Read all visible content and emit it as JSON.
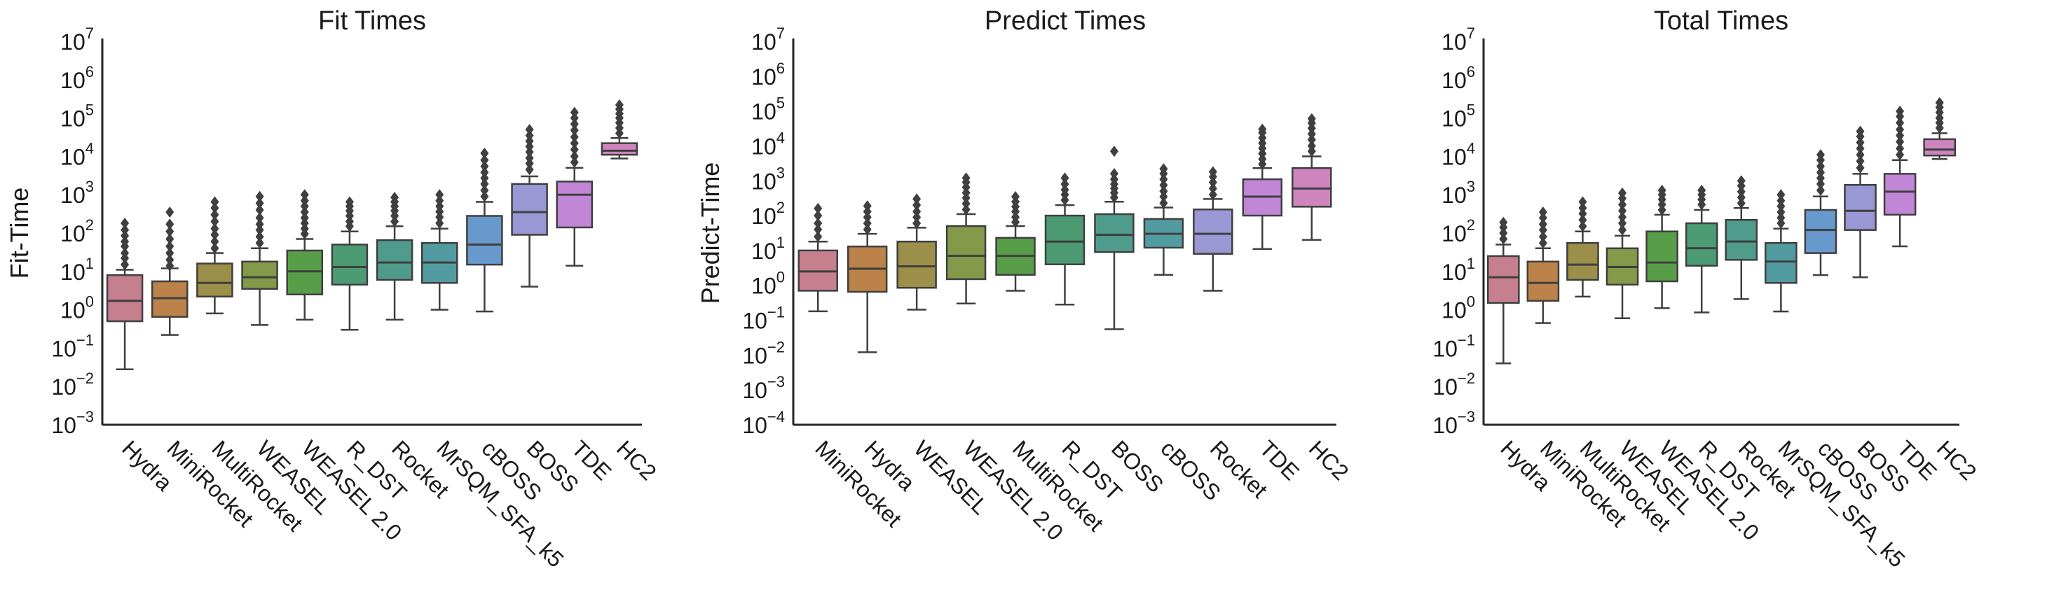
{
  "chart_data": [
    {
      "type": "box",
      "title": "Fit Times",
      "ylabel": "Fit-Time",
      "yscale": "log",
      "ylim_exp": [
        -3,
        7
      ],
      "tick_labels": [
        "10",
        "10",
        "10",
        "10",
        "10",
        "10",
        "10",
        "10",
        "10",
        "10",
        "10"
      ],
      "tick_exponents": [
        "−3",
        "−2",
        "−1",
        "0",
        "1",
        "2",
        "3",
        "4",
        "5",
        "6",
        "7"
      ],
      "categories": [
        "Hydra",
        "MiniRocket",
        "MultiRocket",
        "WEASEL",
        "WEASEL 2.0",
        "R_DST",
        "Rocket",
        "MrSQM_SFA_k5",
        "cBOSS",
        "BOSS",
        "TDE",
        "HC2"
      ],
      "colors": [
        "#d4899a",
        "#c98c4e",
        "#a89a4e",
        "#8ea54f",
        "#5faa4f",
        "#52a77b",
        "#55a898",
        "#58a7ad",
        "#6fa5db",
        "#a5a2e4",
        "#cf90e6",
        "#dd8fcc"
      ],
      "boxes": [
        {
          "whislo": 0.028,
          "q1": 0.5,
          "med": 1.7,
          "q3": 8,
          "whishi": 11,
          "fliers": [
            15,
            22,
            30,
            45,
            60,
            85,
            120,
            180
          ]
        },
        {
          "whislo": 0.22,
          "q1": 0.65,
          "med": 2.0,
          "q3": 5.5,
          "whishi": 12,
          "fliers": [
            14,
            20,
            30,
            45,
            70,
            110,
            170,
            350
          ]
        },
        {
          "whislo": 0.8,
          "q1": 2.2,
          "med": 5.0,
          "q3": 16,
          "whishi": 30,
          "fliers": [
            40,
            60,
            90,
            130,
            200,
            300,
            450,
            650
          ]
        },
        {
          "whislo": 0.4,
          "q1": 3.5,
          "med": 7.0,
          "q3": 18,
          "whishi": 40,
          "fliers": [
            55,
            80,
            120,
            170,
            250,
            400,
            600,
            900
          ]
        },
        {
          "whislo": 0.55,
          "q1": 2.5,
          "med": 10,
          "q3": 35,
          "whishi": 70,
          "fliers": [
            95,
            130,
            180,
            250,
            350,
            500,
            700,
            1000
          ]
        },
        {
          "whislo": 0.3,
          "q1": 4.5,
          "med": 13,
          "q3": 50,
          "whishi": 110,
          "fliers": [
            150,
            200,
            280,
            380,
            500,
            650
          ]
        },
        {
          "whislo": 0.55,
          "q1": 6.0,
          "med": 17,
          "q3": 65,
          "whishi": 150,
          "fliers": [
            200,
            280,
            380,
            500,
            650,
            850
          ]
        },
        {
          "whislo": 1.0,
          "q1": 5.0,
          "med": 17,
          "q3": 55,
          "whishi": 130,
          "fliers": [
            180,
            260,
            360,
            500,
            700,
            1000
          ]
        },
        {
          "whislo": 0.9,
          "q1": 15,
          "med": 50,
          "q3": 280,
          "whishi": 650,
          "fliers": [
            900,
            1300,
            1900,
            2700,
            3800,
            5500,
            8000,
            12000
          ]
        },
        {
          "whislo": 4.0,
          "q1": 90,
          "med": 350,
          "q3": 1900,
          "whishi": 3000,
          "fliers": [
            4500,
            6500,
            9000,
            13000,
            18000,
            25000,
            35000,
            50000
          ]
        },
        {
          "whislo": 14,
          "q1": 140,
          "med": 1000,
          "q3": 2200,
          "whishi": 5000,
          "fliers": [
            7000,
            10000,
            15000,
            22000,
            32000,
            48000,
            70000,
            100000,
            140000
          ]
        },
        {
          "whislo": 8800,
          "q1": 11000,
          "med": 14000,
          "q3": 22000,
          "whishi": 30000,
          "fliers": [
            40000,
            55000,
            75000,
            100000,
            130000,
            170000,
            220000
          ]
        }
      ]
    },
    {
      "type": "box",
      "title": "Predict Times",
      "ylabel": "Predict-Time",
      "yscale": "log",
      "ylim_exp": [
        -4,
        7
      ],
      "tick_labels": [
        "10",
        "10",
        "10",
        "10",
        "10",
        "10",
        "10",
        "10",
        "10",
        "10",
        "10",
        "10"
      ],
      "tick_exponents": [
        "−4",
        "−3",
        "−2",
        "−1",
        "0",
        "1",
        "2",
        "3",
        "4",
        "5",
        "6",
        "7"
      ],
      "categories": [
        "MiniRocket",
        "Hydra",
        "WEASEL",
        "WEASEL 2.0",
        "MultiRocket",
        "R_DST",
        "BOSS",
        "cBOSS",
        "Rocket",
        "TDE",
        "HC2"
      ],
      "colors": [
        "#d4899a",
        "#c98c4e",
        "#a89a4e",
        "#8ea54f",
        "#5faa4f",
        "#52a77b",
        "#55a898",
        "#58a7ad",
        "#a5a2e4",
        "#cf90e6",
        "#dd8fcc"
      ],
      "boxes": [
        {
          "whislo": 0.18,
          "q1": 0.7,
          "med": 2.5,
          "q3": 10,
          "whishi": 18,
          "fliers": [
            25,
            40,
            60,
            100,
            160
          ]
        },
        {
          "whislo": 0.012,
          "q1": 0.65,
          "med": 3.0,
          "q3": 13,
          "whishi": 30,
          "fliers": [
            40,
            60,
            90,
            130,
            190
          ]
        },
        {
          "whislo": 0.2,
          "q1": 0.85,
          "med": 3.5,
          "q3": 18,
          "whishi": 45,
          "fliers": [
            60,
            90,
            130,
            200,
            300
          ]
        },
        {
          "whislo": 0.3,
          "q1": 1.5,
          "med": 7.0,
          "q3": 50,
          "whishi": 110,
          "fliers": [
            150,
            220,
            320,
            450,
            650,
            900,
            1200
          ]
        },
        {
          "whislo": 0.7,
          "q1": 2.0,
          "med": 7.0,
          "q3": 23,
          "whishi": 50,
          "fliers": [
            65,
            90,
            130,
            180,
            250,
            350
          ]
        },
        {
          "whislo": 0.28,
          "q1": 4.0,
          "med": 18,
          "q3": 100,
          "whishi": 200,
          "fliers": [
            280,
            400,
            550,
            800,
            1200
          ]
        },
        {
          "whislo": 0.055,
          "q1": 9.0,
          "med": 28,
          "q3": 110,
          "whishi": 250,
          "fliers": [
            330,
            450,
            600,
            800,
            1100,
            1600,
            7000
          ]
        },
        {
          "whislo": 2.0,
          "q1": 12,
          "med": 30,
          "q3": 80,
          "whishi": 170,
          "fliers": [
            230,
            350,
            500,
            750,
            1100,
            1600,
            2200
          ]
        },
        {
          "whislo": 0.7,
          "q1": 8.0,
          "med": 30,
          "q3": 150,
          "whishi": 300,
          "fliers": [
            400,
            600,
            900,
            1300,
            1800
          ]
        },
        {
          "whislo": 11,
          "q1": 100,
          "med": 350,
          "q3": 1100,
          "whishi": 2300,
          "fliers": [
            3000,
            4200,
            6000,
            8500,
            12000,
            17000,
            24000,
            30000
          ]
        },
        {
          "whislo": 20,
          "q1": 180,
          "med": 600,
          "q3": 2300,
          "whishi": 5000,
          "fliers": [
            7000,
            10000,
            15000,
            22000,
            32000,
            45000,
            60000
          ]
        }
      ]
    },
    {
      "type": "box",
      "title": "Total Times",
      "ylabel": "",
      "yscale": "log",
      "ylim_exp": [
        -3,
        7
      ],
      "tick_labels": [
        "10",
        "10",
        "10",
        "10",
        "10",
        "10",
        "10",
        "10",
        "10",
        "10",
        "10"
      ],
      "tick_exponents": [
        "−3",
        "−2",
        "−1",
        "0",
        "1",
        "2",
        "3",
        "4",
        "5",
        "6",
        "7"
      ],
      "categories": [
        "Hydra",
        "MiniRocket",
        "MultiRocket",
        "WEASEL",
        "WEASEL 2.0",
        "R_DST",
        "Rocket",
        "MrSQM_SFA_k5",
        "cBOSS",
        "BOSS",
        "TDE",
        "HC2"
      ],
      "colors": [
        "#d4899a",
        "#c98c4e",
        "#a89a4e",
        "#8ea54f",
        "#5faa4f",
        "#52a77b",
        "#55a898",
        "#58a7ad",
        "#6fa5db",
        "#a5a2e4",
        "#cf90e6",
        "#dd8fcc"
      ],
      "boxes": [
        {
          "whislo": 0.04,
          "q1": 1.5,
          "med": 7.0,
          "q3": 25,
          "whishi": 50,
          "fliers": [
            70,
            100,
            140,
            190
          ]
        },
        {
          "whislo": 0.45,
          "q1": 1.7,
          "med": 5.0,
          "q3": 18,
          "whishi": 40,
          "fliers": [
            55,
            80,
            120,
            170,
            250,
            350
          ]
        },
        {
          "whislo": 2.2,
          "q1": 6.0,
          "med": 15,
          "q3": 55,
          "whishi": 110,
          "fliers": [
            150,
            220,
            320,
            450,
            650
          ]
        },
        {
          "whislo": 0.6,
          "q1": 4.5,
          "med": 13,
          "q3": 40,
          "whishi": 85,
          "fliers": [
            120,
            180,
            260,
            380,
            550,
            800,
            1100
          ]
        },
        {
          "whislo": 1.1,
          "q1": 5.5,
          "med": 17,
          "q3": 110,
          "whishi": 300,
          "fliers": [
            400,
            550,
            750,
            1000,
            1300
          ]
        },
        {
          "whislo": 0.85,
          "q1": 14,
          "med": 40,
          "q3": 180,
          "whishi": 400,
          "fliers": [
            550,
            750,
            1000,
            1300
          ]
        },
        {
          "whislo": 1.9,
          "q1": 20,
          "med": 60,
          "q3": 220,
          "whishi": 450,
          "fliers": [
            600,
            850,
            1200,
            1700,
            2300
          ]
        },
        {
          "whislo": 0.9,
          "q1": 5.0,
          "med": 18,
          "q3": 55,
          "whishi": 130,
          "fliers": [
            180,
            250,
            350,
            500,
            700,
            1000
          ]
        },
        {
          "whislo": 8.0,
          "q1": 30,
          "med": 120,
          "q3": 400,
          "whishi": 900,
          "fliers": [
            1300,
            1900,
            2700,
            3800,
            5500,
            8000,
            11000
          ]
        },
        {
          "whislo": 7.0,
          "q1": 120,
          "med": 380,
          "q3": 1800,
          "whishi": 3500,
          "fliers": [
            5000,
            7500,
            11000,
            16000,
            23000,
            33000,
            45000
          ]
        },
        {
          "whislo": 45,
          "q1": 300,
          "med": 1200,
          "q3": 3500,
          "whishi": 8000,
          "fliers": [
            11000,
            16000,
            24000,
            35000,
            50000,
            75000,
            110000,
            150000
          ]
        },
        {
          "whislo": 8500,
          "q1": 10500,
          "med": 15000,
          "q3": 28000,
          "whishi": 40000,
          "fliers": [
            55000,
            75000,
            100000,
            140000,
            190000,
            250000
          ]
        }
      ]
    }
  ]
}
